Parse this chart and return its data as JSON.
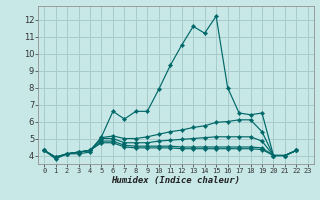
{
  "xlabel": "Humidex (Indice chaleur)",
  "xlim": [
    -0.5,
    23.5
  ],
  "ylim": [
    3.5,
    12.8
  ],
  "yticks": [
    4,
    5,
    6,
    7,
    8,
    9,
    10,
    11,
    12
  ],
  "xticks": [
    0,
    1,
    2,
    3,
    4,
    5,
    6,
    7,
    8,
    9,
    10,
    11,
    12,
    13,
    14,
    15,
    16,
    17,
    18,
    19,
    20,
    21,
    22,
    23
  ],
  "bg_color": "#c8e8e8",
  "grid_color": "#a8cccc",
  "line_color": "#006868",
  "series": [
    {
      "x": [
        0,
        1,
        2,
        3,
        4,
        5,
        6,
        7,
        8,
        9,
        10,
        11,
        12,
        13,
        14,
        15,
        16,
        17,
        18,
        19,
        20,
        21,
        22
      ],
      "y": [
        4.3,
        3.8,
        4.1,
        4.1,
        4.2,
        5.1,
        6.6,
        6.15,
        6.6,
        6.6,
        7.9,
        9.3,
        10.5,
        11.6,
        11.2,
        12.2,
        8.0,
        6.5,
        6.4,
        6.5,
        4.0,
        4.0,
        4.3
      ]
    },
    {
      "x": [
        0,
        1,
        2,
        3,
        4,
        5,
        6,
        7,
        8,
        9,
        10,
        11,
        12,
        13,
        14,
        15,
        16,
        17,
        18,
        19,
        20,
        21,
        22
      ],
      "y": [
        4.3,
        3.9,
        4.1,
        4.2,
        4.3,
        5.05,
        5.15,
        5.0,
        5.0,
        5.1,
        5.25,
        5.4,
        5.5,
        5.65,
        5.75,
        5.95,
        6.0,
        6.1,
        6.1,
        5.4,
        4.0,
        4.0,
        4.3
      ]
    },
    {
      "x": [
        0,
        1,
        2,
        3,
        4,
        5,
        6,
        7,
        8,
        9,
        10,
        11,
        12,
        13,
        14,
        15,
        16,
        17,
        18,
        19,
        20,
        21,
        22
      ],
      "y": [
        4.3,
        3.9,
        4.1,
        4.2,
        4.3,
        5.0,
        5.0,
        4.75,
        4.75,
        4.75,
        4.85,
        4.9,
        4.95,
        5.0,
        5.05,
        5.1,
        5.1,
        5.1,
        5.1,
        4.85,
        4.0,
        4.0,
        4.3
      ]
    },
    {
      "x": [
        0,
        1,
        2,
        3,
        4,
        5,
        6,
        7,
        8,
        9,
        10,
        11,
        12,
        13,
        14,
        15,
        16,
        17,
        18,
        19,
        20,
        21,
        22
      ],
      "y": [
        4.3,
        3.9,
        4.1,
        4.2,
        4.3,
        4.85,
        4.85,
        4.6,
        4.55,
        4.55,
        4.55,
        4.55,
        4.5,
        4.5,
        4.5,
        4.5,
        4.5,
        4.5,
        4.5,
        4.45,
        4.0,
        4.0,
        4.3
      ]
    },
    {
      "x": [
        0,
        1,
        2,
        3,
        4,
        5,
        6,
        7,
        8,
        9,
        10,
        11,
        12,
        13,
        14,
        15,
        16,
        17,
        18,
        19,
        20,
        21,
        22
      ],
      "y": [
        4.3,
        3.9,
        4.1,
        4.2,
        4.3,
        4.75,
        4.75,
        4.5,
        4.45,
        4.45,
        4.45,
        4.45,
        4.4,
        4.4,
        4.4,
        4.4,
        4.4,
        4.4,
        4.4,
        4.35,
        4.0,
        4.0,
        4.3
      ]
    }
  ]
}
